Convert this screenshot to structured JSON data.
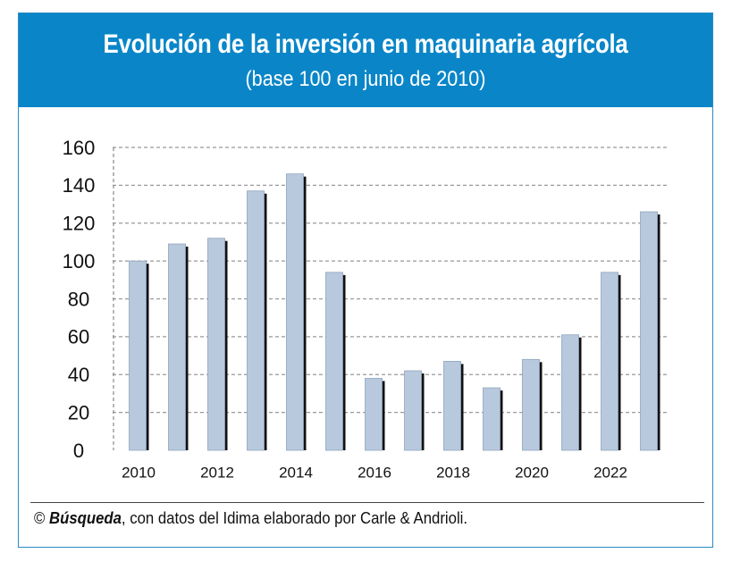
{
  "header": {
    "title": "Evolución de la inversión en maquinaria agrícola",
    "subtitle": "(base 100 en junio de 2010)"
  },
  "footer": {
    "copyright": "©",
    "publication": "Búsqueda",
    "credit": ", con datos del Idima elaborado por Carle & Andrioli."
  },
  "colors": {
    "header_bg": "#0a86c8",
    "bar_fill": "#b8c9de",
    "bar_shadow": "#111111",
    "grid": "#999999"
  },
  "chart_data": {
    "type": "bar",
    "title": "Evolución de la inversión en maquinaria agrícola",
    "subtitle": "(base 100 en junio de 2010)",
    "categories": [
      "2010",
      "2011",
      "2012",
      "2013",
      "2014",
      "2015",
      "2016",
      "2017",
      "2018",
      "2019",
      "2020",
      "2021",
      "2022",
      "2023"
    ],
    "tick_labels": [
      "2010",
      "",
      "2012",
      "",
      "2014",
      "",
      "2016",
      "",
      "2018",
      "",
      "2020",
      "",
      "2022",
      ""
    ],
    "values": [
      100,
      109,
      112,
      137,
      146,
      94,
      38,
      42,
      47,
      33,
      48,
      61,
      94,
      126
    ],
    "ylim": [
      0,
      160
    ],
    "yticks": [
      0,
      20,
      40,
      60,
      80,
      100,
      120,
      140,
      160
    ],
    "grid": true,
    "legend": "none"
  }
}
